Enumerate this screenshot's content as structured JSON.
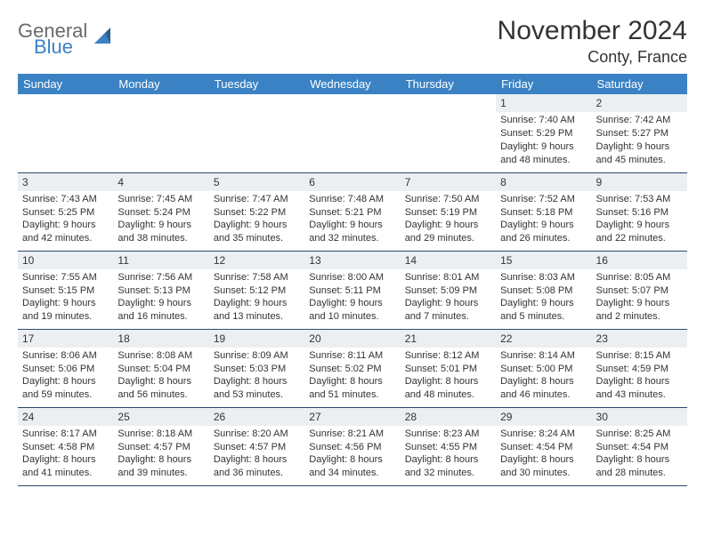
{
  "brand": {
    "general": "General",
    "blue": "Blue"
  },
  "title": "November 2024",
  "location": "Conty, France",
  "colors": {
    "header_bg": "#3b82c4",
    "header_text": "#ffffff",
    "daynum_bg": "#eceff1",
    "border": "#2c4a6b",
    "text": "#333333",
    "logo_gray": "#6a6a6a",
    "logo_blue": "#3b82c4"
  },
  "typography": {
    "title_fontsize": 30,
    "location_fontsize": 18,
    "header_fontsize": 13,
    "cell_fontsize": 11
  },
  "dayNames": [
    "Sunday",
    "Monday",
    "Tuesday",
    "Wednesday",
    "Thursday",
    "Friday",
    "Saturday"
  ],
  "weeks": [
    [
      null,
      null,
      null,
      null,
      null,
      {
        "n": "1",
        "sr": "Sunrise: 7:40 AM",
        "ss": "Sunset: 5:29 PM",
        "d1": "Daylight: 9 hours",
        "d2": "and 48 minutes."
      },
      {
        "n": "2",
        "sr": "Sunrise: 7:42 AM",
        "ss": "Sunset: 5:27 PM",
        "d1": "Daylight: 9 hours",
        "d2": "and 45 minutes."
      }
    ],
    [
      {
        "n": "3",
        "sr": "Sunrise: 7:43 AM",
        "ss": "Sunset: 5:25 PM",
        "d1": "Daylight: 9 hours",
        "d2": "and 42 minutes."
      },
      {
        "n": "4",
        "sr": "Sunrise: 7:45 AM",
        "ss": "Sunset: 5:24 PM",
        "d1": "Daylight: 9 hours",
        "d2": "and 38 minutes."
      },
      {
        "n": "5",
        "sr": "Sunrise: 7:47 AM",
        "ss": "Sunset: 5:22 PM",
        "d1": "Daylight: 9 hours",
        "d2": "and 35 minutes."
      },
      {
        "n": "6",
        "sr": "Sunrise: 7:48 AM",
        "ss": "Sunset: 5:21 PM",
        "d1": "Daylight: 9 hours",
        "d2": "and 32 minutes."
      },
      {
        "n": "7",
        "sr": "Sunrise: 7:50 AM",
        "ss": "Sunset: 5:19 PM",
        "d1": "Daylight: 9 hours",
        "d2": "and 29 minutes."
      },
      {
        "n": "8",
        "sr": "Sunrise: 7:52 AM",
        "ss": "Sunset: 5:18 PM",
        "d1": "Daylight: 9 hours",
        "d2": "and 26 minutes."
      },
      {
        "n": "9",
        "sr": "Sunrise: 7:53 AM",
        "ss": "Sunset: 5:16 PM",
        "d1": "Daylight: 9 hours",
        "d2": "and 22 minutes."
      }
    ],
    [
      {
        "n": "10",
        "sr": "Sunrise: 7:55 AM",
        "ss": "Sunset: 5:15 PM",
        "d1": "Daylight: 9 hours",
        "d2": "and 19 minutes."
      },
      {
        "n": "11",
        "sr": "Sunrise: 7:56 AM",
        "ss": "Sunset: 5:13 PM",
        "d1": "Daylight: 9 hours",
        "d2": "and 16 minutes."
      },
      {
        "n": "12",
        "sr": "Sunrise: 7:58 AM",
        "ss": "Sunset: 5:12 PM",
        "d1": "Daylight: 9 hours",
        "d2": "and 13 minutes."
      },
      {
        "n": "13",
        "sr": "Sunrise: 8:00 AM",
        "ss": "Sunset: 5:11 PM",
        "d1": "Daylight: 9 hours",
        "d2": "and 10 minutes."
      },
      {
        "n": "14",
        "sr": "Sunrise: 8:01 AM",
        "ss": "Sunset: 5:09 PM",
        "d1": "Daylight: 9 hours",
        "d2": "and 7 minutes."
      },
      {
        "n": "15",
        "sr": "Sunrise: 8:03 AM",
        "ss": "Sunset: 5:08 PM",
        "d1": "Daylight: 9 hours",
        "d2": "and 5 minutes."
      },
      {
        "n": "16",
        "sr": "Sunrise: 8:05 AM",
        "ss": "Sunset: 5:07 PM",
        "d1": "Daylight: 9 hours",
        "d2": "and 2 minutes."
      }
    ],
    [
      {
        "n": "17",
        "sr": "Sunrise: 8:06 AM",
        "ss": "Sunset: 5:06 PM",
        "d1": "Daylight: 8 hours",
        "d2": "and 59 minutes."
      },
      {
        "n": "18",
        "sr": "Sunrise: 8:08 AM",
        "ss": "Sunset: 5:04 PM",
        "d1": "Daylight: 8 hours",
        "d2": "and 56 minutes."
      },
      {
        "n": "19",
        "sr": "Sunrise: 8:09 AM",
        "ss": "Sunset: 5:03 PM",
        "d1": "Daylight: 8 hours",
        "d2": "and 53 minutes."
      },
      {
        "n": "20",
        "sr": "Sunrise: 8:11 AM",
        "ss": "Sunset: 5:02 PM",
        "d1": "Daylight: 8 hours",
        "d2": "and 51 minutes."
      },
      {
        "n": "21",
        "sr": "Sunrise: 8:12 AM",
        "ss": "Sunset: 5:01 PM",
        "d1": "Daylight: 8 hours",
        "d2": "and 48 minutes."
      },
      {
        "n": "22",
        "sr": "Sunrise: 8:14 AM",
        "ss": "Sunset: 5:00 PM",
        "d1": "Daylight: 8 hours",
        "d2": "and 46 minutes."
      },
      {
        "n": "23",
        "sr": "Sunrise: 8:15 AM",
        "ss": "Sunset: 4:59 PM",
        "d1": "Daylight: 8 hours",
        "d2": "and 43 minutes."
      }
    ],
    [
      {
        "n": "24",
        "sr": "Sunrise: 8:17 AM",
        "ss": "Sunset: 4:58 PM",
        "d1": "Daylight: 8 hours",
        "d2": "and 41 minutes."
      },
      {
        "n": "25",
        "sr": "Sunrise: 8:18 AM",
        "ss": "Sunset: 4:57 PM",
        "d1": "Daylight: 8 hours",
        "d2": "and 39 minutes."
      },
      {
        "n": "26",
        "sr": "Sunrise: 8:20 AM",
        "ss": "Sunset: 4:57 PM",
        "d1": "Daylight: 8 hours",
        "d2": "and 36 minutes."
      },
      {
        "n": "27",
        "sr": "Sunrise: 8:21 AM",
        "ss": "Sunset: 4:56 PM",
        "d1": "Daylight: 8 hours",
        "d2": "and 34 minutes."
      },
      {
        "n": "28",
        "sr": "Sunrise: 8:23 AM",
        "ss": "Sunset: 4:55 PM",
        "d1": "Daylight: 8 hours",
        "d2": "and 32 minutes."
      },
      {
        "n": "29",
        "sr": "Sunrise: 8:24 AM",
        "ss": "Sunset: 4:54 PM",
        "d1": "Daylight: 8 hours",
        "d2": "and 30 minutes."
      },
      {
        "n": "30",
        "sr": "Sunrise: 8:25 AM",
        "ss": "Sunset: 4:54 PM",
        "d1": "Daylight: 8 hours",
        "d2": "and 28 minutes."
      }
    ]
  ]
}
